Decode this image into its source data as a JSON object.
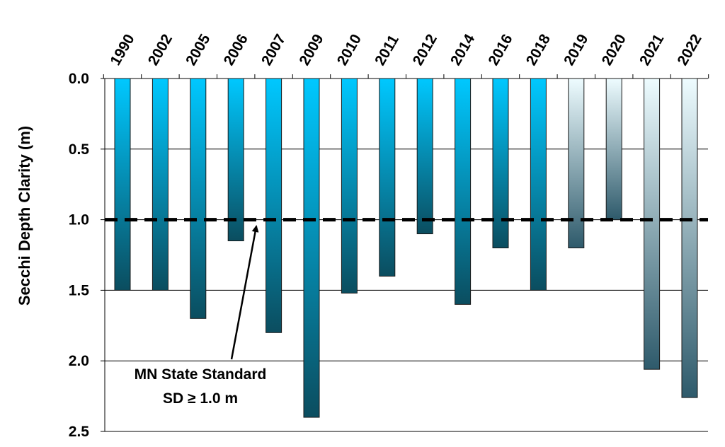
{
  "chart_data": {
    "type": "bar",
    "orientation": "vertical-inverted",
    "ylabel": "Secchi Depth Clarity (m)",
    "xlabel": "",
    "ylim": [
      0,
      2.5
    ],
    "yticks": [
      "0.0",
      "0.5",
      "1.0",
      "1.5",
      "2.0",
      "2.5"
    ],
    "x_tick_position": "top",
    "grid": true,
    "categories": [
      "1990",
      "2002",
      "2005",
      "2006",
      "2007",
      "2009",
      "2010",
      "2011",
      "2012",
      "2014",
      "2016",
      "2018",
      "2019",
      "2020",
      "2021",
      "2022"
    ],
    "values": [
      1.5,
      1.5,
      1.7,
      1.15,
      1.8,
      2.4,
      1.52,
      1.4,
      1.1,
      1.6,
      1.2,
      1.5,
      1.2,
      1.0,
      2.06,
      2.26
    ],
    "series_style": [
      "dark",
      "dark",
      "dark",
      "dark",
      "dark",
      "dark",
      "dark",
      "dark",
      "dark",
      "dark",
      "dark",
      "dark",
      "light",
      "light",
      "light",
      "light"
    ],
    "colors": {
      "dark_top": "#00C8FF",
      "dark_bottom": "#0B4D5F",
      "light_top": "#EEFCFF",
      "light_bottom": "#2E5A6B",
      "bar_outline": "#1a1a1a",
      "grid": "#000000",
      "standard_line": "#000000"
    },
    "reference_line": {
      "value": 1.0,
      "style": "dashed"
    },
    "annotation": {
      "line1": "MN State Standard",
      "line2": "SD ≥ 1.0 m"
    }
  }
}
